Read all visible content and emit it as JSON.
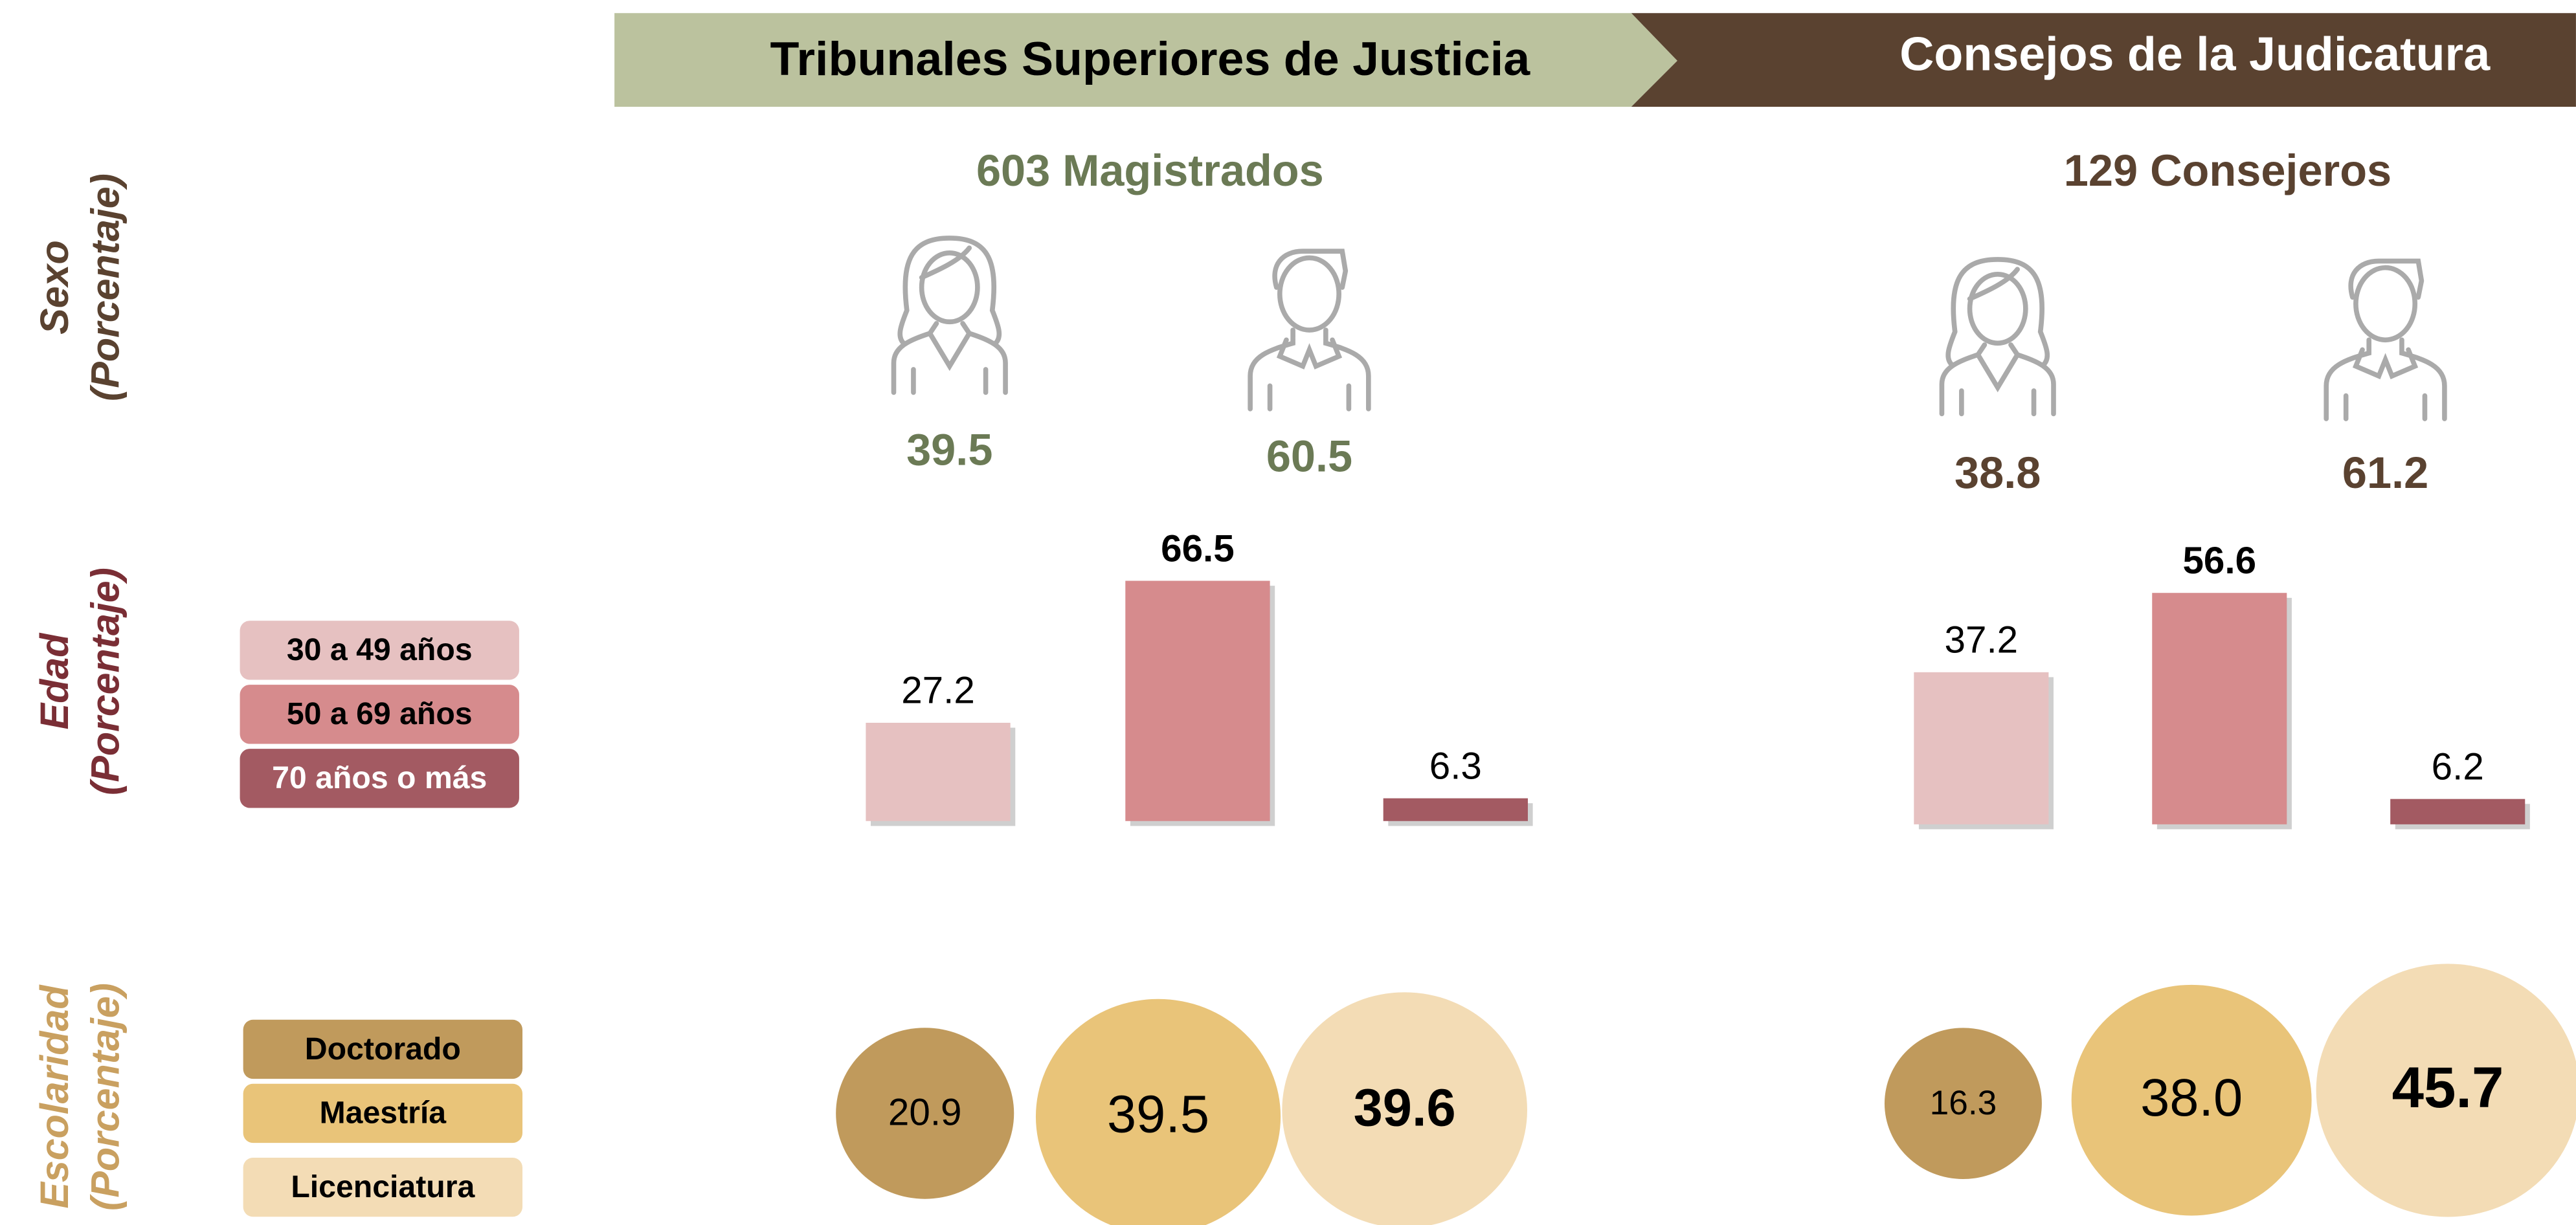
{
  "headers": [
    {
      "text": "Tribunales Superiores de Justicia",
      "color": "#bbc29e",
      "text_color": "#000000"
    },
    {
      "text": "Consejos de la Judicatura",
      "color": "#5a4230",
      "text_color": "#ffffff"
    }
  ],
  "row_labels": [
    {
      "title": "Sexo",
      "subtitle": "(Porcentaje)",
      "color": "#5a4230"
    },
    {
      "title": "Edad",
      "subtitle": "(Porcentaje)",
      "color": "#7a2e35"
    },
    {
      "title": "Escolaridad",
      "subtitle": "(Porcentaje)",
      "color": "#c9a060"
    }
  ],
  "age_legend": {
    "labels": [
      "30 a 49 años",
      "50 a 69 años",
      "70 años o más"
    ],
    "colors": [
      "#e6c1c1",
      "#d68b8d",
      "#a35a62"
    ],
    "text_colors": [
      "#000000",
      "#000000",
      "#ffffff"
    ]
  },
  "education_legend": {
    "labels": [
      "Doctorado",
      "Maestría",
      "Licenciatura"
    ],
    "colors": [
      "#c09a5c",
      "#e9c479",
      "#f3dcb5"
    ]
  },
  "panels": [
    {
      "subtitle": "603 Magistrados",
      "color": "#6b7a55",
      "sex": {
        "values": [
          39.5,
          60.5
        ]
      },
      "age": {
        "values": [
          27.2,
          66.5,
          6.3
        ]
      },
      "education": {
        "values": [
          20.9,
          39.5,
          39.6
        ]
      }
    },
    {
      "subtitle": "129 Consejeros",
      "color": "#5a4230",
      "sex": {
        "values": [
          38.8,
          61.2
        ]
      },
      "age": {
        "values": [
          37.2,
          56.6,
          6.2
        ]
      },
      "education": {
        "values": [
          16.3,
          38.0,
          45.7
        ],
        "value_labels": [
          "16.3",
          "38.0",
          "45.7"
        ]
      }
    }
  ]
}
